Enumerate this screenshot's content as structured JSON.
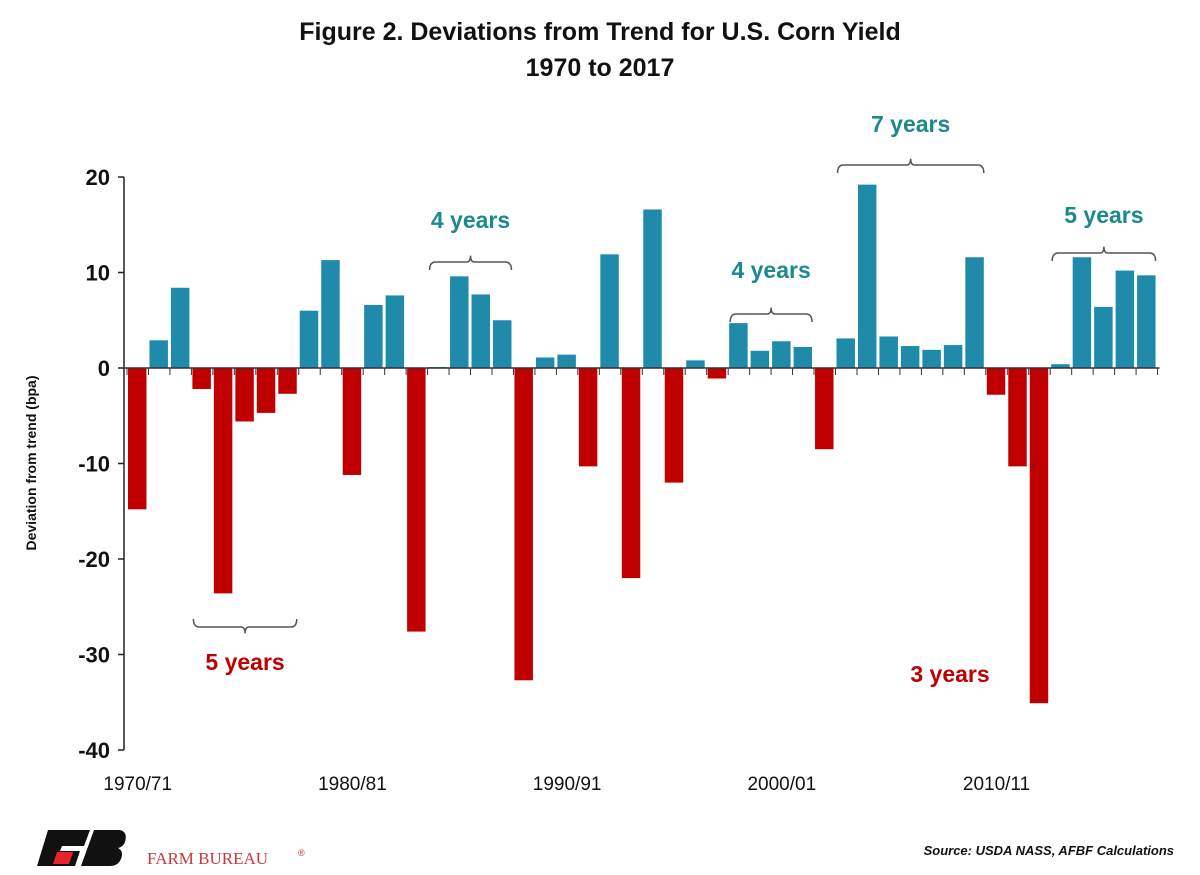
{
  "chart_data": {
    "type": "bar",
    "title": "Figure 2. Deviations from Trend for U.S. Corn Yield",
    "subtitle": "1970 to 2017",
    "xlabel": "",
    "ylabel": "Deviation from trend (bpa)",
    "ylim": [
      -40,
      20
    ],
    "yticks": [
      "20",
      "10",
      "0",
      "-10",
      "-20",
      "-30",
      "-40"
    ],
    "xtick_labels": [
      {
        "label": "1970/71",
        "year": 1970
      },
      {
        "label": "1980/81",
        "year": 1980
      },
      {
        "label": "1990/91",
        "year": 1990
      },
      {
        "label": "2000/01",
        "year": 2000
      },
      {
        "label": "2010/11",
        "year": 2010
      }
    ],
    "x": [
      1970,
      1971,
      1972,
      1973,
      1974,
      1975,
      1976,
      1977,
      1978,
      1979,
      1980,
      1981,
      1982,
      1983,
      1984,
      1985,
      1986,
      1987,
      1988,
      1989,
      1990,
      1991,
      1992,
      1993,
      1994,
      1995,
      1996,
      1997,
      1998,
      1999,
      2000,
      2001,
      2002,
      2003,
      2004,
      2005,
      2006,
      2007,
      2008,
      2009,
      2010,
      2011,
      2012,
      2013,
      2014,
      2015,
      2016,
      2017
    ],
    "values": [
      -14.8,
      2.9,
      8.4,
      -2.2,
      -23.6,
      -5.6,
      -4.7,
      -2.7,
      6.0,
      11.3,
      -11.2,
      6.6,
      7.6,
      -27.6,
      0.1,
      9.6,
      7.7,
      5.0,
      -32.7,
      1.1,
      1.4,
      -10.3,
      11.9,
      -22.0,
      16.6,
      -12.0,
      0.8,
      -1.1,
      4.7,
      1.8,
      2.8,
      2.2,
      -8.5,
      3.1,
      19.2,
      3.3,
      2.3,
      1.9,
      2.4,
      11.6,
      -2.8,
      -10.3,
      -35.1,
      0.4,
      11.6,
      6.4,
      10.2,
      9.7
    ],
    "colors": {
      "positive": "#1f8aaa",
      "negative": "#c00000"
    },
    "grid": false,
    "annotations": [
      {
        "text": "5 years",
        "from": 1973,
        "to": 1977,
        "color": "#c00000",
        "position": "below"
      },
      {
        "text": "4 years",
        "from": 1984,
        "to": 1987,
        "color": "#1a8a8c",
        "position": "above"
      },
      {
        "text": "4 years",
        "from": 1998,
        "to": 2001,
        "color": "#1a8a8c",
        "position": "above"
      },
      {
        "text": "7 years",
        "from": 2003,
        "to": 2009,
        "color": "#1a8a8c",
        "position": "above"
      },
      {
        "text": "3 years",
        "from": 2010,
        "to": 2012,
        "color": "#c00000",
        "position": "label-only"
      },
      {
        "text": "5 years",
        "from": 2013,
        "to": 2017,
        "color": "#1a8a8c",
        "position": "above"
      }
    ]
  },
  "footer": {
    "brand": "FARM BUREAU",
    "brand_mark": "®",
    "source": "Source: USDA NASS, AFBF Calculations"
  }
}
